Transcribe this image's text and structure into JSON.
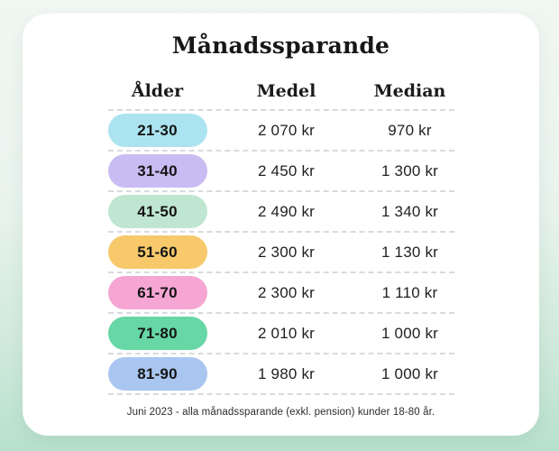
{
  "title": "Månadssparande",
  "table": {
    "headers": {
      "age": "Ålder",
      "mean": "Medel",
      "median": "Median"
    },
    "rows": [
      {
        "age": "21-30",
        "pill_color": "#abe4f0",
        "mean": "2 070 kr",
        "median": "970 kr"
      },
      {
        "age": "31-40",
        "pill_color": "#c9bcf2",
        "mean": "2 450 kr",
        "median": "1 300 kr"
      },
      {
        "age": "41-50",
        "pill_color": "#bfe6d0",
        "mean": "2 490 kr",
        "median": "1 340 kr"
      },
      {
        "age": "51-60",
        "pill_color": "#f7c96b",
        "mean": "2 300 kr",
        "median": "1 130 kr"
      },
      {
        "age": "61-70",
        "pill_color": "#f6a6d3",
        "mean": "2 300 kr",
        "median": "1 110 kr"
      },
      {
        "age": "71-80",
        "pill_color": "#66d7a5",
        "mean": "2 010 kr",
        "median": "1 000 kr"
      },
      {
        "age": "81-90",
        "pill_color": "#a9c6f0",
        "mean": "1 980 kr",
        "median": "1 000 kr"
      }
    ]
  },
  "footer_note": "Juni 2023 - alla månadssparande (exkl. pension) kunder 18-80 år.",
  "colors": {
    "background_top": "#f1f7f3",
    "background_bottom": "#b7e1cd",
    "card": "#ffffff",
    "divider": "#d9dade",
    "text": "#1b1b1b"
  },
  "chart_data": {
    "type": "table",
    "title": "Månadssparande",
    "columns": [
      "Ålder",
      "Medel",
      "Median"
    ],
    "unit": "kr",
    "rows": [
      {
        "age_group": "21-30",
        "medel": 2070,
        "median": 970
      },
      {
        "age_group": "31-40",
        "medel": 2450,
        "median": 1300
      },
      {
        "age_group": "41-50",
        "medel": 2490,
        "median": 1340
      },
      {
        "age_group": "51-60",
        "medel": 2300,
        "median": 1130
      },
      {
        "age_group": "61-70",
        "medel": 2300,
        "median": 1110
      },
      {
        "age_group": "71-80",
        "medel": 2010,
        "median": 1000
      },
      {
        "age_group": "81-90",
        "medel": 1980,
        "median": 1000
      }
    ],
    "note": "Juni 2023 - alla månadssparande (exkl. pension) kunder 18-80 år."
  }
}
